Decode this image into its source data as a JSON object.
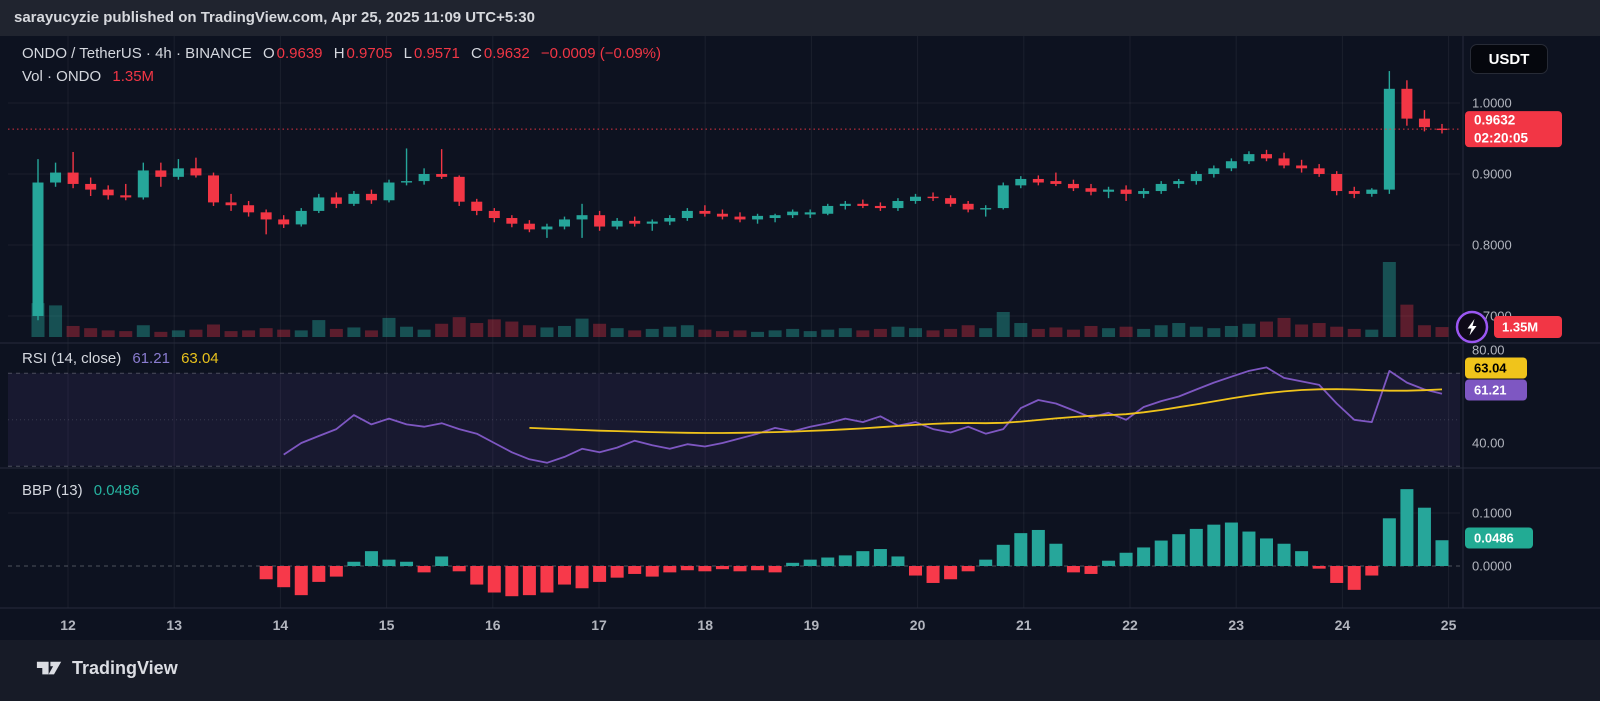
{
  "publish_bar": {
    "text": "sarayucyzie published on TradingView.com, Apr 25, 2025 11:09 UTC+5:30"
  },
  "header": {
    "symbol": "ONDO / TetherUS · 4h · BINANCE",
    "o_label": "O",
    "o": "0.9639",
    "h_label": "H",
    "h": "0.9705",
    "l_label": "L",
    "l": "0.9571",
    "c_label": "C",
    "c": "0.9632",
    "change": "−0.0009 (−0.09%)",
    "vol_label": "Vol · ONDO",
    "vol_value": "1.35M"
  },
  "rsi_header": {
    "title": "RSI (14, close)",
    "value_rsi": "61.21",
    "value_ma": "63.04"
  },
  "bbp_header": {
    "title": "BBP (13)",
    "value": "0.0486"
  },
  "price_axis": {
    "currency_button": "USDT",
    "main_labels": [
      {
        "text": "1.0000",
        "price": 1.0
      },
      {
        "text": "0.9000",
        "price": 0.9
      },
      {
        "text": "0.8000",
        "price": 0.8
      },
      {
        "text": "0.7000",
        "price": 0.7
      }
    ],
    "last_price_badge": {
      "price_text": "0.9632",
      "countdown": "02:20:05"
    },
    "volume_badge": {
      "text": "1.35M"
    },
    "rsi_axis_labels": [
      {
        "text": "80.00",
        "value": 80
      },
      {
        "text": "40.00",
        "value": 40
      }
    ],
    "rsi_ma_badge": {
      "text": "63.04"
    },
    "rsi_badge": {
      "text": "61.21"
    },
    "bbp_axis_labels": [
      {
        "text": "0.1000",
        "value": 0.1
      },
      {
        "text": "0.0000",
        "value": 0.0
      }
    ],
    "bbp_badge": {
      "text": "0.0486"
    }
  },
  "time_axis": {
    "labels": [
      "12",
      "13",
      "14",
      "15",
      "16",
      "17",
      "18",
      "19",
      "20",
      "21",
      "22",
      "23",
      "24",
      "25"
    ]
  },
  "footer": {
    "logo_text": "TradingView"
  },
  "colors": {
    "up": "#26a69a",
    "down": "#f23645",
    "rsi_line": "#7e57c2",
    "rsi_ma_line": "#f0c41b",
    "rsi_band": "rgba(126,87,194,0.10)",
    "bbp_up": "#26a69a",
    "bbp_down": "#f7394a",
    "badge_last": "#f23645",
    "badge_vol": "#f23645",
    "badge_rsi_ma": "#f0c41b",
    "badge_rsi": "#7e57c2",
    "badge_bbp": "#22ab94",
    "axis_text": "#b2b5be",
    "grid": "rgba(255,255,255,0.06)",
    "separator": "#262b3b",
    "level_line": "#787b86",
    "dotted_price_line": "#f23645",
    "boost_ring": "#9b57f2"
  },
  "chart_data": {
    "type": "candlestick",
    "title": "ONDO / TetherUS 4h BINANCE",
    "x_day_labels": [
      "12",
      "13",
      "14",
      "15",
      "16",
      "17",
      "18",
      "19",
      "20",
      "21",
      "22",
      "23",
      "24",
      "25"
    ],
    "price_gridlines": [
      1.0,
      0.9,
      0.8,
      0.7
    ],
    "ylim_price": [
      0.66,
      1.06
    ],
    "rsi_levels": {
      "upper": 70,
      "middle": 50,
      "lower": 30
    },
    "ylim_rsi": [
      25,
      85
    ],
    "bbp_gridline": 0.1,
    "ylim_bbp": [
      -0.08,
      0.18
    ],
    "last_price": 0.9632,
    "last_ohlc": {
      "open": 0.9639,
      "high": 0.9705,
      "low": 0.9571,
      "close": 0.9632,
      "change": -0.0009,
      "change_pct": -0.09
    },
    "last_volume_m": 1.35,
    "last_rsi": 61.21,
    "last_rsi_ma": 63.04,
    "last_bbp": 0.0486,
    "candles": [
      [
        0.7,
        0.921,
        0.694,
        0.888
      ],
      [
        0.888,
        0.916,
        0.882,
        0.902
      ],
      [
        0.902,
        0.931,
        0.88,
        0.886
      ],
      [
        0.886,
        0.895,
        0.869,
        0.878
      ],
      [
        0.878,
        0.884,
        0.864,
        0.87
      ],
      [
        0.87,
        0.886,
        0.863,
        0.867
      ],
      [
        0.867,
        0.916,
        0.864,
        0.905
      ],
      [
        0.905,
        0.916,
        0.882,
        0.896
      ],
      [
        0.896,
        0.921,
        0.892,
        0.908
      ],
      [
        0.908,
        0.923,
        0.895,
        0.898
      ],
      [
        0.898,
        0.902,
        0.855,
        0.86
      ],
      [
        0.86,
        0.872,
        0.848,
        0.856
      ],
      [
        0.856,
        0.862,
        0.84,
        0.846
      ],
      [
        0.846,
        0.85,
        0.815,
        0.836
      ],
      [
        0.836,
        0.842,
        0.824,
        0.829
      ],
      [
        0.829,
        0.852,
        0.826,
        0.848
      ],
      [
        0.848,
        0.872,
        0.845,
        0.867
      ],
      [
        0.867,
        0.874,
        0.852,
        0.858
      ],
      [
        0.858,
        0.876,
        0.855,
        0.872
      ],
      [
        0.872,
        0.878,
        0.858,
        0.863
      ],
      [
        0.863,
        0.892,
        0.86,
        0.888
      ],
      [
        0.888,
        0.936,
        0.884,
        0.89
      ],
      [
        0.89,
        0.908,
        0.885,
        0.9
      ],
      [
        0.9,
        0.935,
        0.893,
        0.896
      ],
      [
        0.896,
        0.898,
        0.855,
        0.861
      ],
      [
        0.861,
        0.865,
        0.842,
        0.848
      ],
      [
        0.848,
        0.852,
        0.832,
        0.838
      ],
      [
        0.838,
        0.842,
        0.825,
        0.83
      ],
      [
        0.83,
        0.835,
        0.818,
        0.822
      ],
      [
        0.822,
        0.83,
        0.81,
        0.826
      ],
      [
        0.826,
        0.84,
        0.822,
        0.836
      ],
      [
        0.836,
        0.858,
        0.81,
        0.842
      ],
      [
        0.842,
        0.848,
        0.82,
        0.826
      ],
      [
        0.826,
        0.838,
        0.822,
        0.834
      ],
      [
        0.834,
        0.84,
        0.826,
        0.83
      ],
      [
        0.83,
        0.836,
        0.82,
        0.833
      ],
      [
        0.833,
        0.842,
        0.828,
        0.838
      ],
      [
        0.838,
        0.852,
        0.834,
        0.848
      ],
      [
        0.848,
        0.856,
        0.84,
        0.844
      ],
      [
        0.844,
        0.85,
        0.836,
        0.84
      ],
      [
        0.84,
        0.846,
        0.832,
        0.836
      ],
      [
        0.836,
        0.844,
        0.83,
        0.841
      ],
      [
        0.838,
        0.844,
        0.832,
        0.842
      ],
      [
        0.842,
        0.85,
        0.838,
        0.847
      ],
      [
        0.843,
        0.85,
        0.838,
        0.846
      ],
      [
        0.844,
        0.858,
        0.842,
        0.855
      ],
      [
        0.855,
        0.862,
        0.85,
        0.858
      ],
      [
        0.858,
        0.864,
        0.852,
        0.855
      ],
      [
        0.855,
        0.86,
        0.848,
        0.852
      ],
      [
        0.852,
        0.866,
        0.848,
        0.862
      ],
      [
        0.862,
        0.872,
        0.858,
        0.868
      ],
      [
        0.868,
        0.874,
        0.862,
        0.866
      ],
      [
        0.866,
        0.87,
        0.854,
        0.858
      ],
      [
        0.858,
        0.862,
        0.846,
        0.85
      ],
      [
        0.85,
        0.856,
        0.84,
        0.852
      ],
      [
        0.852,
        0.888,
        0.85,
        0.884
      ],
      [
        0.884,
        0.897,
        0.88,
        0.893
      ],
      [
        0.893,
        0.898,
        0.884,
        0.888
      ],
      [
        0.89,
        0.902,
        0.883,
        0.886
      ],
      [
        0.886,
        0.892,
        0.876,
        0.88
      ],
      [
        0.88,
        0.886,
        0.87,
        0.875
      ],
      [
        0.875,
        0.882,
        0.866,
        0.878
      ],
      [
        0.878,
        0.884,
        0.862,
        0.872
      ],
      [
        0.872,
        0.88,
        0.866,
        0.876
      ],
      [
        0.876,
        0.89,
        0.872,
        0.886
      ],
      [
        0.886,
        0.893,
        0.88,
        0.89
      ],
      [
        0.89,
        0.904,
        0.885,
        0.9
      ],
      [
        0.9,
        0.912,
        0.895,
        0.908
      ],
      [
        0.908,
        0.922,
        0.904,
        0.918
      ],
      [
        0.918,
        0.932,
        0.914,
        0.928
      ],
      [
        0.928,
        0.934,
        0.918,
        0.922
      ],
      [
        0.922,
        0.93,
        0.908,
        0.912
      ],
      [
        0.912,
        0.92,
        0.902,
        0.908
      ],
      [
        0.908,
        0.914,
        0.896,
        0.9
      ],
      [
        0.9,
        0.904,
        0.87,
        0.876
      ],
      [
        0.876,
        0.882,
        0.866,
        0.872
      ],
      [
        0.872,
        0.88,
        0.868,
        0.878
      ],
      [
        0.878,
        1.045,
        0.872,
        1.02
      ],
      [
        1.02,
        1.032,
        0.968,
        0.978
      ],
      [
        0.978,
        0.99,
        0.96,
        0.966
      ],
      [
        0.9639,
        0.9705,
        0.9571,
        0.9632
      ]
    ],
    "volumes": [
      4.6,
      4.3,
      1.5,
      1.2,
      0.9,
      0.8,
      1.6,
      0.7,
      0.9,
      1.0,
      1.7,
      0.8,
      0.9,
      1.2,
      1.0,
      0.9,
      2.3,
      1.1,
      1.3,
      0.9,
      2.6,
      1.4,
      1.0,
      1.8,
      2.7,
      1.9,
      2.4,
      2.1,
      1.6,
      1.3,
      1.5,
      2.5,
      1.8,
      1.2,
      0.9,
      1.1,
      1.4,
      1.6,
      1.0,
      0.8,
      0.9,
      0.7,
      0.9,
      1.1,
      0.8,
      1.0,
      1.2,
      0.9,
      1.1,
      1.4,
      1.2,
      0.9,
      1.1,
      1.6,
      1.2,
      3.4,
      1.9,
      1.1,
      1.3,
      1.0,
      1.5,
      1.2,
      1.4,
      1.1,
      1.6,
      1.9,
      1.4,
      1.2,
      1.5,
      1.8,
      2.1,
      2.6,
      1.7,
      1.9,
      1.4,
      1.1,
      1.0,
      10.2,
      4.4,
      1.6,
      1.35
    ],
    "rsi": {
      "start_index": 14,
      "values": [
        35,
        40,
        43,
        46,
        52,
        48,
        50.5,
        48,
        47,
        48.5,
        46,
        44,
        40,
        36,
        33,
        31.5,
        34,
        37.5,
        36,
        38,
        41,
        39,
        37.5,
        39.5,
        38.5,
        40,
        42,
        44,
        46.5,
        45,
        47,
        48.5,
        50.5,
        49,
        51.5,
        47.5,
        49,
        46,
        44.5,
        47,
        44,
        46,
        55,
        58.5,
        57,
        54,
        51,
        53,
        50,
        55.5,
        58,
        60,
        63,
        66,
        68.5,
        71,
        72.5,
        68,
        66.5,
        65,
        57,
        50,
        49,
        71,
        66,
        63,
        61.21
      ]
    },
    "rsi_ma": {
      "start_index": 28,
      "values": [
        46.5,
        46.2,
        45.9,
        45.6,
        45.3,
        45.1,
        44.9,
        44.7,
        44.5,
        44.4,
        44.3,
        44.3,
        44.4,
        44.5,
        44.7,
        44.9,
        45.2,
        45.5,
        45.9,
        46.3,
        46.8,
        47.3,
        47.8,
        48.2,
        48.5,
        48.6,
        48.5,
        48.7,
        49.2,
        49.9,
        50.6,
        51.2,
        51.7,
        52.0,
        52.4,
        53.2,
        54.2,
        55.4,
        56.6,
        57.9,
        59.2,
        60.4,
        61.4,
        62.2,
        62.8,
        63.1,
        63.2,
        63.0,
        62.7,
        62.5,
        62.5,
        62.7,
        63.04
      ]
    },
    "bbp": {
      "start_index": 13,
      "values": [
        -0.025,
        -0.04,
        -0.055,
        -0.03,
        -0.02,
        0.008,
        0.028,
        0.012,
        0.008,
        -0.012,
        0.018,
        -0.01,
        -0.035,
        -0.05,
        -0.057,
        -0.055,
        -0.05,
        -0.035,
        -0.042,
        -0.03,
        -0.022,
        -0.015,
        -0.02,
        -0.012,
        -0.008,
        -0.01,
        -0.006,
        -0.01,
        -0.008,
        -0.012,
        0.006,
        0.012,
        0.016,
        0.02,
        0.028,
        0.032,
        0.018,
        -0.018,
        -0.032,
        -0.025,
        -0.01,
        0.012,
        0.04,
        0.062,
        0.068,
        0.042,
        -0.012,
        -0.015,
        0.01,
        0.025,
        0.035,
        0.048,
        0.06,
        0.07,
        0.078,
        0.082,
        0.065,
        0.052,
        0.042,
        0.028,
        -0.005,
        -0.032,
        -0.045,
        -0.018,
        0.09,
        0.145,
        0.11,
        0.0486
      ]
    }
  }
}
